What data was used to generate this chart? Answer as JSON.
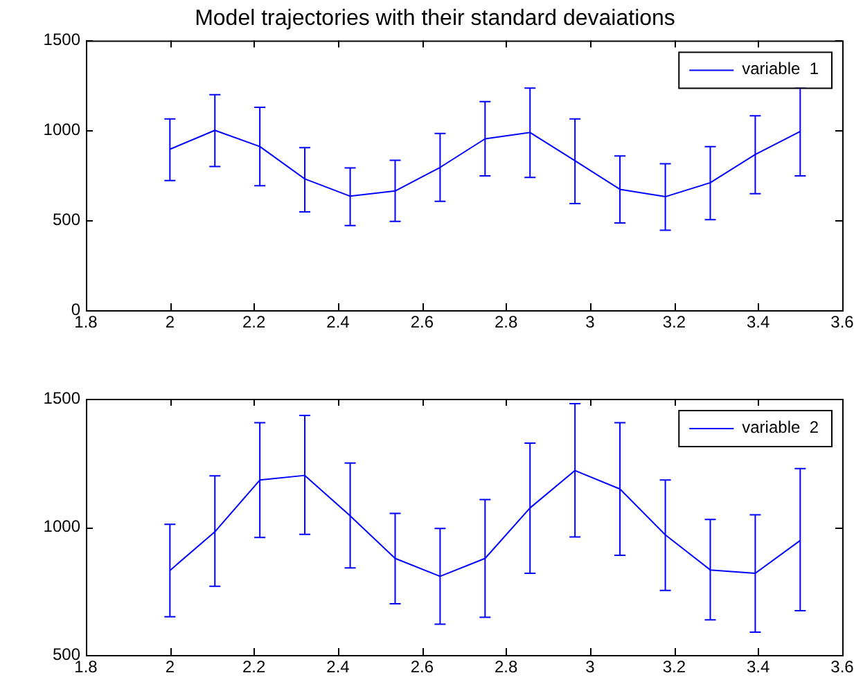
{
  "chart_data": [
    {
      "type": "line",
      "title": "Model trajectories with their standard devaiations",
      "x": [
        2,
        2.107,
        2.214,
        2.321,
        2.429,
        2.536,
        2.643,
        2.75,
        2.857,
        2.964,
        3.071,
        3.179,
        3.286,
        3.393,
        3.5
      ],
      "xlim": [
        1.8,
        3.6
      ],
      "xticks": [
        1.8,
        2,
        2.2,
        2.4,
        2.6,
        2.8,
        3,
        3.2,
        3.4,
        3.6
      ],
      "ylim": [
        0,
        1500
      ],
      "yticks": [
        0,
        500,
        1000,
        1500
      ],
      "grid": false,
      "legend": "top right",
      "series": [
        {
          "name": "variable  1",
          "color": "#0000ff",
          "values": [
            895,
            1000,
            910,
            730,
            634,
            663,
            794,
            953,
            988,
            831,
            672,
            631,
            709,
            866,
            994
          ],
          "errors": [
            [
              721,
              1064
            ],
            [
              799,
              1198
            ],
            [
              692,
              1128
            ],
            [
              547,
              904
            ],
            [
              471,
              791
            ],
            [
              494,
              834
            ],
            [
              605,
              983
            ],
            [
              747,
              1160
            ],
            [
              738,
              1235
            ],
            [
              593,
              1064
            ],
            [
              485,
              858
            ],
            [
              445,
              814
            ],
            [
              503,
              910
            ],
            [
              648,
              1081
            ],
            [
              747,
              1240
            ]
          ]
        }
      ]
    },
    {
      "type": "line",
      "x": [
        2,
        2.107,
        2.214,
        2.321,
        2.429,
        2.536,
        2.643,
        2.75,
        2.857,
        2.964,
        3.071,
        3.179,
        3.286,
        3.393,
        3.5
      ],
      "xlim": [
        1.8,
        3.6
      ],
      "xticks": [
        1.8,
        2,
        2.2,
        2.4,
        2.6,
        2.8,
        3,
        3.2,
        3.4,
        3.6
      ],
      "ylim": [
        500,
        1500
      ],
      "yticks": [
        500,
        1000,
        1500
      ],
      "grid": false,
      "legend": "top right",
      "series": [
        {
          "name": "variable  2",
          "color": "#0000ff",
          "values": [
            830,
            981,
            1183,
            1201,
            1043,
            877,
            807,
            877,
            1074,
            1220,
            1148,
            969,
            832,
            819,
            947
          ],
          "errors": [
            [
              649,
              1010
            ],
            [
              768,
              1199
            ],
            [
              959,
              1407
            ],
            [
              971,
              1435
            ],
            [
              840,
              1249
            ],
            [
              700,
              1053
            ],
            [
              620,
              994
            ],
            [
              647,
              1107
            ],
            [
              819,
              1327
            ],
            [
              961,
              1481
            ],
            [
              889,
              1407
            ],
            [
              752,
              1183
            ],
            [
              637,
              1029
            ],
            [
              589,
              1047
            ],
            [
              673,
              1228
            ]
          ]
        }
      ]
    }
  ]
}
